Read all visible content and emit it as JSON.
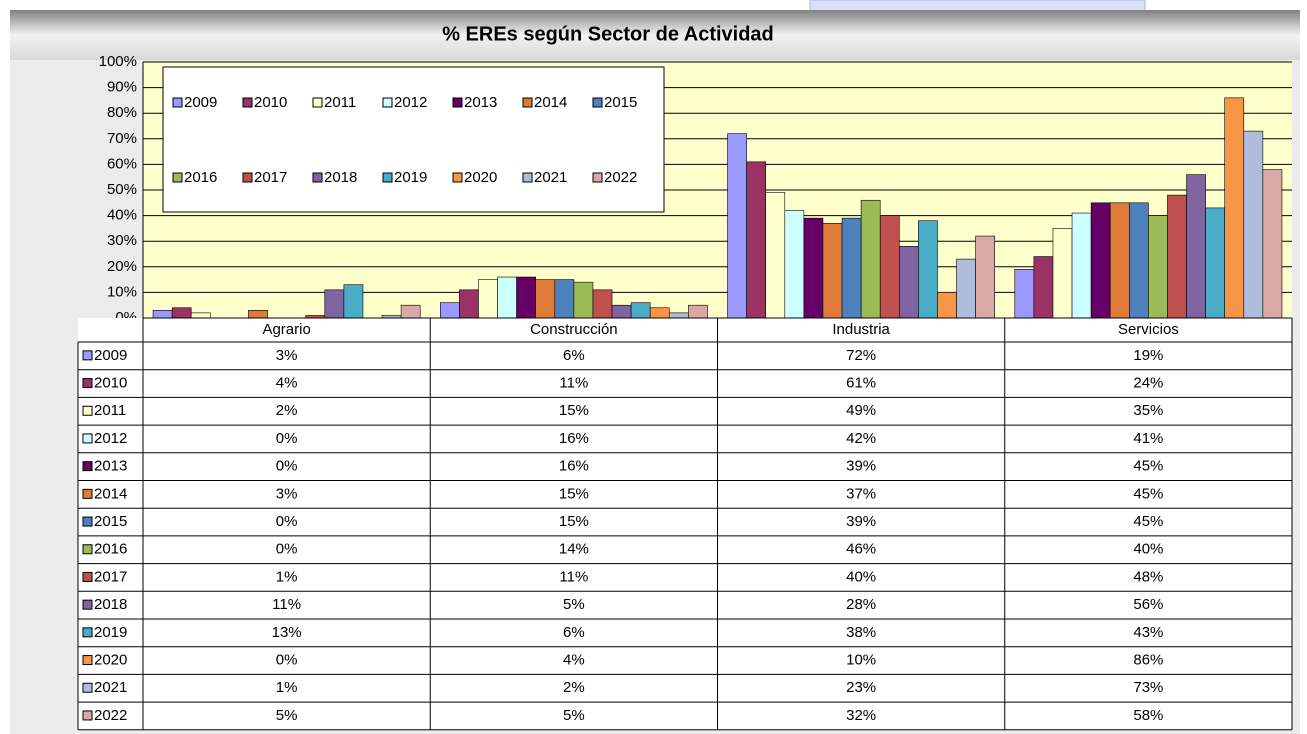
{
  "chart_data": {
    "type": "bar",
    "title": "%  EREs según Sector de Actividad",
    "categories": [
      "Agrario",
      "Construcción",
      "Industria",
      "Servicios"
    ],
    "ylim": [
      0,
      100
    ],
    "yticks": [
      {
        "value": 0,
        "label": "0%"
      },
      {
        "value": 10,
        "label": "10%"
      },
      {
        "value": 20,
        "label": "20%"
      },
      {
        "value": 30,
        "label": "30%"
      },
      {
        "value": 40,
        "label": "40%"
      },
      {
        "value": 50,
        "label": "50%"
      },
      {
        "value": 60,
        "label": "60%"
      },
      {
        "value": 70,
        "label": "70%"
      },
      {
        "value": 80,
        "label": "80%"
      },
      {
        "value": 90,
        "label": "90%"
      },
      {
        "value": 100,
        "label": "100%"
      }
    ],
    "grid": true,
    "legend": "top-left",
    "series": [
      {
        "name": "2009",
        "color": "#9999ff",
        "values": [
          3,
          6,
          72,
          19
        ],
        "value_labels": [
          "3%",
          "6%",
          "72%",
          "19%"
        ]
      },
      {
        "name": "2010",
        "color": "#993366",
        "values": [
          4,
          11,
          61,
          24
        ],
        "value_labels": [
          "4%",
          "11%",
          "61%",
          "24%"
        ]
      },
      {
        "name": "2011",
        "color": "#ffffcc",
        "values": [
          2,
          15,
          49,
          35
        ],
        "value_labels": [
          "2%",
          "15%",
          "49%",
          "35%"
        ]
      },
      {
        "name": "2012",
        "color": "#ccffff",
        "values": [
          0,
          16,
          42,
          41
        ],
        "value_labels": [
          "0%",
          "16%",
          "42%",
          "41%"
        ]
      },
      {
        "name": "2013",
        "color": "#660066",
        "values": [
          0,
          16,
          39,
          45
        ],
        "value_labels": [
          "0%",
          "16%",
          "39%",
          "45%"
        ]
      },
      {
        "name": "2014",
        "color": "#e07b39",
        "values": [
          3,
          15,
          37,
          45
        ],
        "value_labels": [
          "3%",
          "15%",
          "37%",
          "45%"
        ]
      },
      {
        "name": "2015",
        "color": "#4f81bd",
        "values": [
          0,
          15,
          39,
          45
        ],
        "value_labels": [
          "0%",
          "15%",
          "39%",
          "45%"
        ]
      },
      {
        "name": "2016",
        "color": "#9bbb59",
        "values": [
          0,
          14,
          46,
          40
        ],
        "value_labels": [
          "0%",
          "14%",
          "46%",
          "40%"
        ]
      },
      {
        "name": "2017",
        "color": "#c0504d",
        "values": [
          1,
          11,
          40,
          48
        ],
        "value_labels": [
          "1%",
          "11%",
          "40%",
          "48%"
        ]
      },
      {
        "name": "2018",
        "color": "#8064a2",
        "values": [
          11,
          5,
          28,
          56
        ],
        "value_labels": [
          "11%",
          "5%",
          "28%",
          "56%"
        ]
      },
      {
        "name": "2019",
        "color": "#4bacc6",
        "values": [
          13,
          6,
          38,
          43
        ],
        "value_labels": [
          "13%",
          "6%",
          "38%",
          "43%"
        ]
      },
      {
        "name": "2020",
        "color": "#f79646",
        "values": [
          0,
          4,
          10,
          86
        ],
        "value_labels": [
          "0%",
          "4%",
          "10%",
          "86%"
        ]
      },
      {
        "name": "2021",
        "color": "#b0bcdc",
        "values": [
          1,
          2,
          23,
          73
        ],
        "value_labels": [
          "1%",
          "2%",
          "23%",
          "73%"
        ]
      },
      {
        "name": "2022",
        "color": "#dba8a8",
        "values": [
          5,
          5,
          32,
          58
        ],
        "value_labels": [
          "5%",
          "5%",
          "32%",
          "58%"
        ]
      }
    ]
  }
}
